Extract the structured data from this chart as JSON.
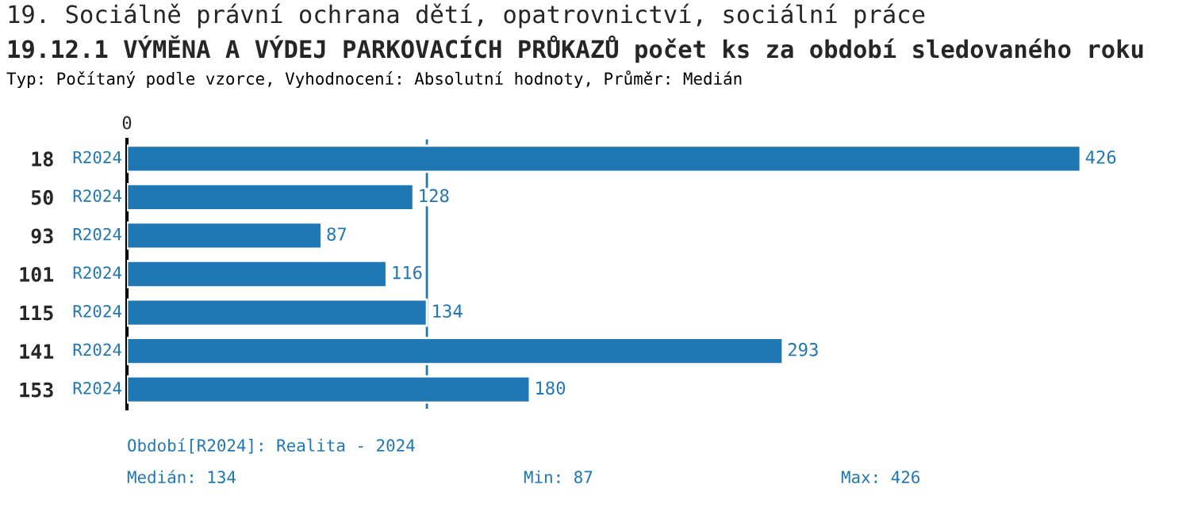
{
  "chart_data": {
    "type": "bar",
    "orientation": "horizontal",
    "title": "19. Sociálně právní ochrana dětí, opatrovnictví, sociální práce",
    "subtitle": "19.12.1 VÝMĚNA A VÝDEJ PARKOVACÍCH PRŮKAZŮ počet ks za období sledovaného roku",
    "categories": [
      "18",
      "50",
      "93",
      "101",
      "115",
      "141",
      "153"
    ],
    "series": [
      {
        "name": "R2024",
        "color": "#1f77b4",
        "values": [
          426,
          128,
          87,
          116,
          134,
          293,
          180
        ]
      }
    ],
    "data_labels": true,
    "grid": false,
    "legend": false,
    "ref_lines": [
      {
        "axis": "x",
        "value": 134,
        "label": null,
        "color": "#1f77b4"
      }
    ],
    "annotations": [
      "0",
      "Typ: Počítaný podle vzorce, Vyhodnocení: Absolutní hodnoty, Průměr: Medián",
      "Období[R2024]: Realita - 2024",
      "Medián: 134",
      "Min: 87",
      "Max: 426"
    ]
  }
}
